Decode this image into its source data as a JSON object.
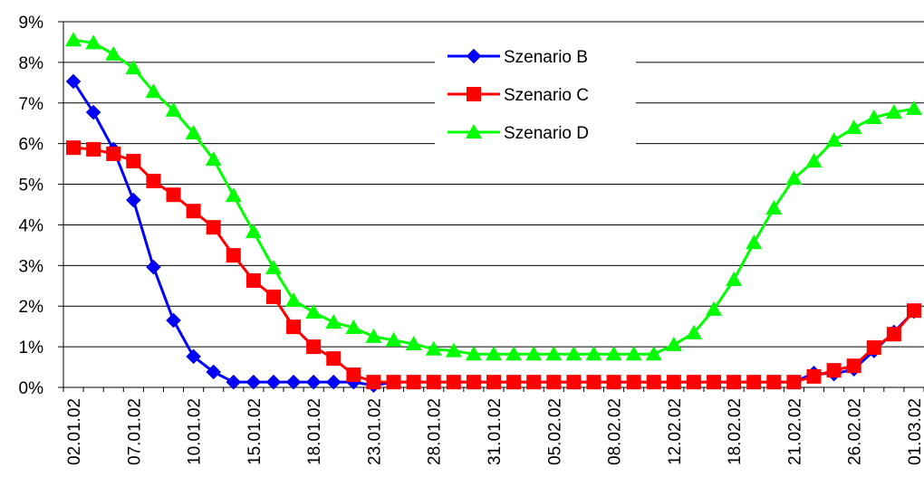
{
  "chart_data": {
    "type": "line",
    "categories": [
      "02.01.02",
      null,
      null,
      "07.01.02",
      null,
      null,
      "10.01.02",
      null,
      null,
      "15.01.02",
      null,
      null,
      "18.01.02",
      null,
      null,
      "23.01.02",
      null,
      null,
      "28.01.02",
      null,
      null,
      "31.01.02",
      null,
      null,
      "05.02.02",
      null,
      null,
      "08.02.02",
      null,
      null,
      "12.02.02",
      null,
      null,
      "18.02.02",
      null,
      null,
      "21.02.02",
      null,
      null,
      "26.02.02",
      null,
      null,
      "01.03.02"
    ],
    "series": [
      {
        "name": "Szenario B",
        "color": "#0000ff",
        "marker": "diamond",
        "values": [
          7.53,
          6.77,
          5.86,
          4.61,
          2.96,
          1.65,
          0.76,
          0.38,
          0.13,
          0.13,
          0.13,
          0.13,
          0.13,
          0.13,
          0.13,
          0.05,
          0.13,
          0.13,
          0.13,
          0.13,
          0.13,
          0.13,
          0.13,
          0.13,
          0.13,
          0.13,
          0.13,
          0.13,
          0.13,
          0.13,
          0.13,
          0.13,
          0.13,
          0.13,
          0.13,
          0.13,
          0.13,
          0.35,
          0.33,
          0.45,
          0.9,
          1.36,
          1.87
        ]
      },
      {
        "name": "Szenario C",
        "color": "#ff0000",
        "marker": "square",
        "values": [
          5.9,
          5.86,
          5.75,
          5.57,
          5.08,
          4.74,
          4.34,
          3.94,
          3.25,
          2.63,
          2.23,
          1.49,
          1.0,
          0.71,
          0.31,
          0.13,
          0.13,
          0.13,
          0.13,
          0.13,
          0.13,
          0.13,
          0.13,
          0.13,
          0.13,
          0.13,
          0.13,
          0.13,
          0.13,
          0.13,
          0.13,
          0.13,
          0.13,
          0.13,
          0.13,
          0.13,
          0.13,
          0.27,
          0.42,
          0.53,
          0.98,
          1.31,
          1.89
        ]
      },
      {
        "name": "Szenario D",
        "color": "#00ff00",
        "marker": "triangle",
        "values": [
          8.55,
          8.48,
          8.2,
          7.86,
          7.28,
          6.82,
          6.26,
          5.61,
          4.72,
          3.83,
          2.94,
          2.14,
          1.85,
          1.6,
          1.47,
          1.25,
          1.16,
          1.07,
          0.94,
          0.9,
          0.82,
          0.82,
          0.82,
          0.82,
          0.82,
          0.82,
          0.82,
          0.82,
          0.82,
          0.82,
          1.05,
          1.34,
          1.92,
          2.65,
          3.56,
          4.41,
          5.14,
          5.57,
          6.08,
          6.39,
          6.64,
          6.77,
          6.86
        ]
      }
    ],
    "ylim": [
      0,
      9
    ],
    "yticks": [
      {
        "value": 0,
        "label": "0%"
      },
      {
        "value": 1,
        "label": "1%"
      },
      {
        "value": 2,
        "label": "2%"
      },
      {
        "value": 3,
        "label": "3%"
      },
      {
        "value": 4,
        "label": "4%"
      },
      {
        "value": 5,
        "label": "5%"
      },
      {
        "value": 6,
        "label": "6%"
      },
      {
        "value": 7,
        "label": "7%"
      },
      {
        "value": 8,
        "label": "8%"
      },
      {
        "value": 9,
        "label": "9%"
      }
    ],
    "grid": true,
    "legend": "top-right"
  }
}
